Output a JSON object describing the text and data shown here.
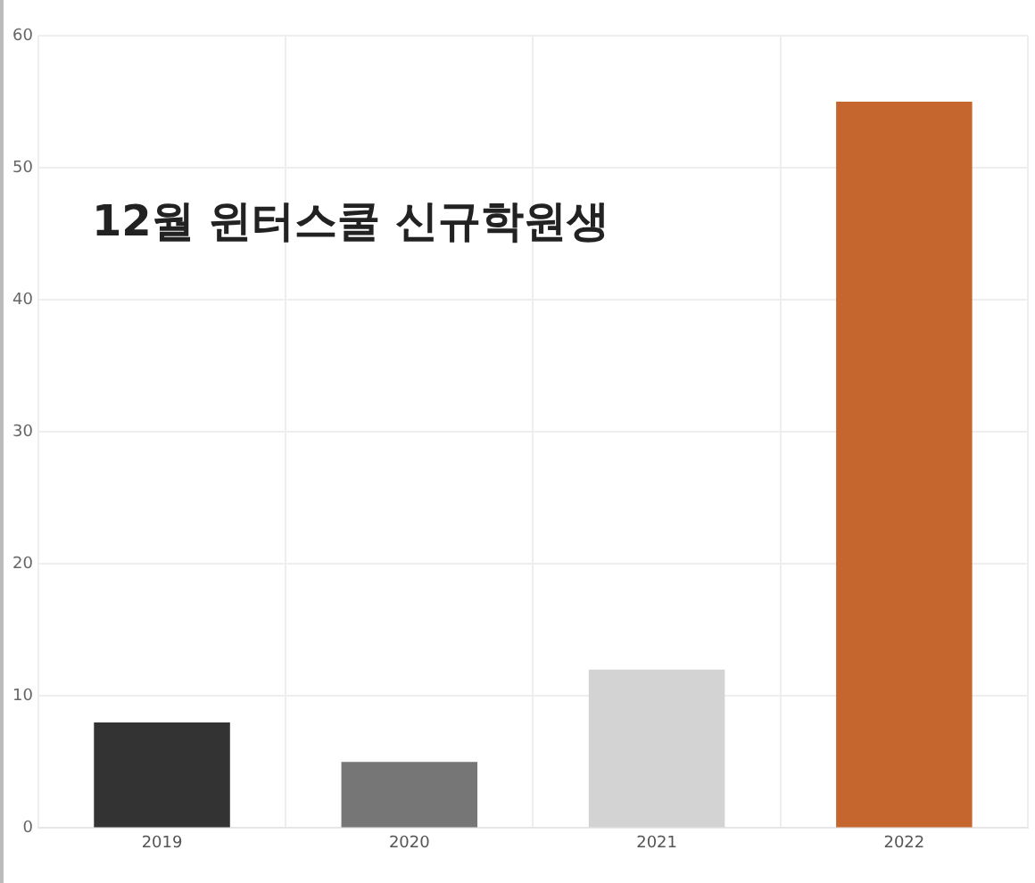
{
  "chart_data": {
    "type": "bar",
    "title": "12월 윈터스쿨 신규학원생",
    "categories": [
      "2019",
      "2020",
      "2021",
      "2022"
    ],
    "values": [
      8,
      5,
      12,
      55
    ],
    "colors": [
      "#333333",
      "#767676",
      "#d3d3d3",
      "#c5662f"
    ],
    "ylim": [
      0,
      60
    ],
    "yticks": [
      0,
      10,
      20,
      30,
      40,
      50,
      60
    ],
    "grid": true,
    "legend": false
  }
}
